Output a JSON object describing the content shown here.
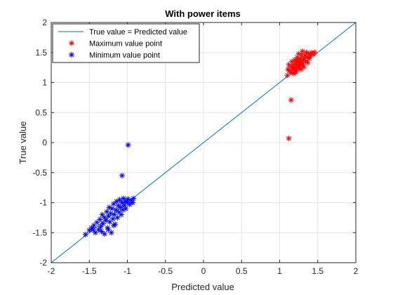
{
  "chart_data": {
    "type": "scatter",
    "title": "With power items",
    "xlabel": "Predicted value",
    "ylabel": "True value",
    "xlim": [
      -2,
      2
    ],
    "ylim": [
      -2,
      2
    ],
    "xticks": [
      -2,
      -1.5,
      -1,
      -0.5,
      0,
      0.5,
      1,
      1.5,
      2
    ],
    "xtick_labels": [
      "-2",
      "-1.5",
      "-1",
      "-0.5",
      "0",
      "0.5",
      "1",
      "1.5",
      "2"
    ],
    "yticks": [
      -2,
      -1.5,
      -1,
      -0.5,
      0,
      0.5,
      1,
      1.5,
      2
    ],
    "ytick_labels": [
      "-2",
      "-1.5",
      "-1",
      "-0.5",
      "0",
      "0.5",
      "1",
      "1.5",
      "2"
    ],
    "grid": true,
    "legend_position": "top-left",
    "series": [
      {
        "name": "True value = Predicted value",
        "kind": "line",
        "color": "#0072BD",
        "points": [
          [
            -2,
            -2
          ],
          [
            2,
            2
          ]
        ]
      },
      {
        "name": "Maximum value point",
        "kind": "markers",
        "marker": "asterisk",
        "color": "#FF0000",
        "points": [
          [
            1.12,
            0.07
          ],
          [
            1.15,
            0.71
          ],
          [
            1.1,
            1.12
          ],
          [
            1.11,
            1.22
          ],
          [
            1.12,
            1.3
          ],
          [
            1.14,
            1.18
          ],
          [
            1.15,
            1.27
          ],
          [
            1.16,
            1.35
          ],
          [
            1.17,
            1.22
          ],
          [
            1.18,
            1.3
          ],
          [
            1.19,
            1.15
          ],
          [
            1.2,
            1.38
          ],
          [
            1.2,
            1.25
          ],
          [
            1.21,
            1.32
          ],
          [
            1.22,
            1.2
          ],
          [
            1.23,
            1.42
          ],
          [
            1.23,
            1.28
          ],
          [
            1.24,
            1.35
          ],
          [
            1.25,
            1.24
          ],
          [
            1.25,
            1.48
          ],
          [
            1.26,
            1.3
          ],
          [
            1.27,
            1.4
          ],
          [
            1.28,
            1.34
          ],
          [
            1.28,
            1.22
          ],
          [
            1.29,
            1.45
          ],
          [
            1.3,
            1.3
          ],
          [
            1.3,
            1.52
          ],
          [
            1.31,
            1.38
          ],
          [
            1.32,
            1.26
          ],
          [
            1.33,
            1.45
          ],
          [
            1.34,
            1.35
          ],
          [
            1.35,
            1.5
          ],
          [
            1.36,
            1.42
          ],
          [
            1.37,
            1.33
          ],
          [
            1.38,
            1.48
          ],
          [
            1.39,
            1.4
          ],
          [
            1.4,
            1.45
          ],
          [
            1.42,
            1.5
          ],
          [
            1.44,
            1.47
          ],
          [
            1.46,
            1.5
          ],
          [
            1.13,
            1.2
          ],
          [
            1.18,
            1.24
          ],
          [
            1.21,
            1.18
          ],
          [
            1.24,
            1.3
          ],
          [
            1.27,
            1.28
          ],
          [
            1.26,
            1.36
          ],
          [
            1.29,
            1.33
          ],
          [
            1.32,
            1.4
          ],
          [
            1.22,
            1.36
          ],
          [
            1.17,
            1.16
          ]
        ]
      },
      {
        "name": "Minimum value point",
        "kind": "markers",
        "marker": "asterisk",
        "color": "#0000FF",
        "points": [
          [
            -0.99,
            -0.04
          ],
          [
            -1.07,
            -0.55
          ],
          [
            -1.55,
            -1.53
          ],
          [
            -1.5,
            -1.46
          ],
          [
            -1.47,
            -1.42
          ],
          [
            -1.44,
            -1.38
          ],
          [
            -1.42,
            -1.5
          ],
          [
            -1.4,
            -1.33
          ],
          [
            -1.38,
            -1.45
          ],
          [
            -1.36,
            -1.28
          ],
          [
            -1.35,
            -1.4
          ],
          [
            -1.33,
            -1.2
          ],
          [
            -1.32,
            -1.35
          ],
          [
            -1.3,
            -1.52
          ],
          [
            -1.3,
            -1.25
          ],
          [
            -1.28,
            -1.3
          ],
          [
            -1.27,
            -1.15
          ],
          [
            -1.26,
            -1.42
          ],
          [
            -1.25,
            -1.22
          ],
          [
            -1.24,
            -1.08
          ],
          [
            -1.23,
            -1.32
          ],
          [
            -1.22,
            -1.18
          ],
          [
            -1.21,
            -1.5
          ],
          [
            -1.2,
            -1.1
          ],
          [
            -1.19,
            -1.27
          ],
          [
            -1.18,
            -1.02
          ],
          [
            -1.17,
            -1.2
          ],
          [
            -1.16,
            -1.36
          ],
          [
            -1.15,
            -1.12
          ],
          [
            -1.14,
            -0.98
          ],
          [
            -1.13,
            -1.25
          ],
          [
            -1.12,
            -1.05
          ],
          [
            -1.11,
            -1.16
          ],
          [
            -1.1,
            -0.95
          ],
          [
            -1.09,
            -1.08
          ],
          [
            -1.08,
            -1.2
          ],
          [
            -1.07,
            -1.0
          ],
          [
            -1.06,
            -1.12
          ],
          [
            -1.05,
            -0.93
          ],
          [
            -1.04,
            -1.05
          ],
          [
            -1.03,
            -0.98
          ],
          [
            -1.02,
            -1.1
          ],
          [
            -1.0,
            -1.0
          ],
          [
            -0.99,
            -0.94
          ],
          [
            -0.97,
            -1.03
          ],
          [
            -0.95,
            -0.97
          ],
          [
            -0.93,
            -1.0
          ],
          [
            -0.92,
            -0.93
          ],
          [
            -1.25,
            -1.45
          ],
          [
            -1.18,
            -1.38
          ],
          [
            -1.34,
            -1.48
          ],
          [
            -1.45,
            -1.45
          ]
        ]
      }
    ]
  }
}
